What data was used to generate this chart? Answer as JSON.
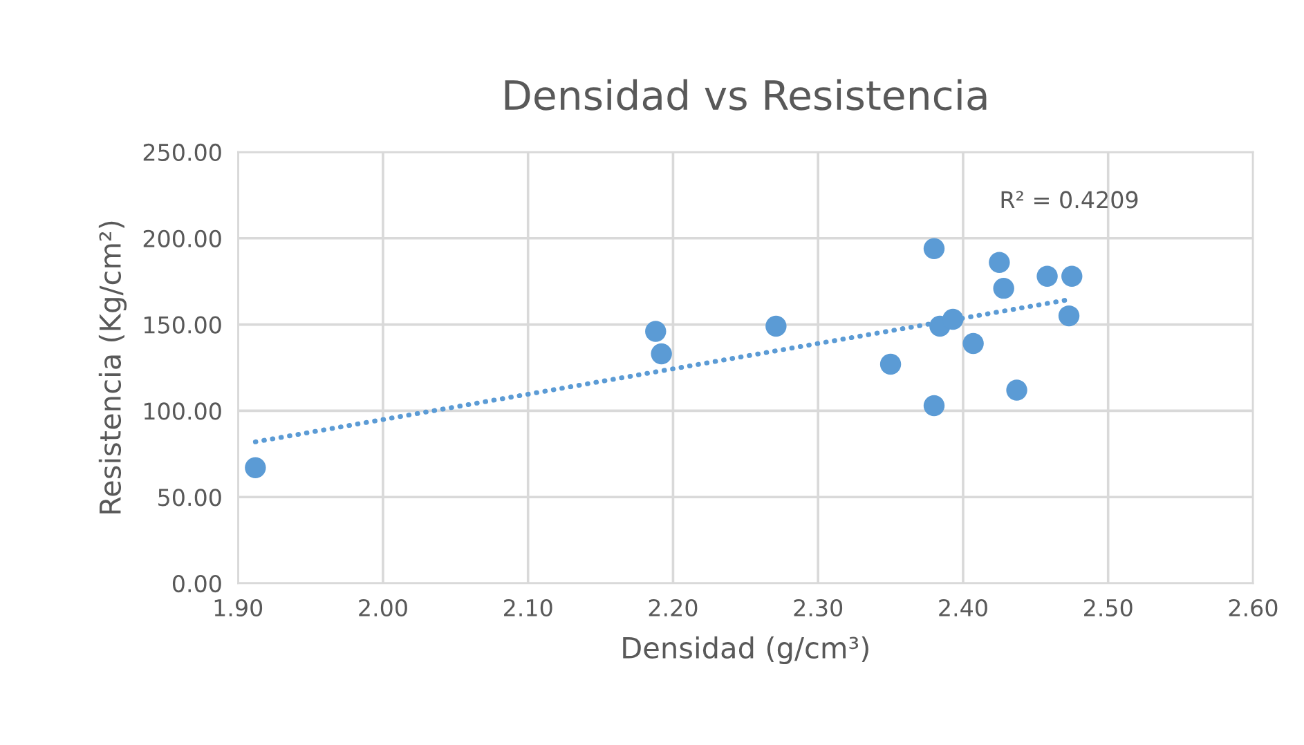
{
  "chart_data": {
    "type": "scatter",
    "title": "Densidad vs Resistencia",
    "xlabel": "Densidad (g/cm³)",
    "ylabel": "Resistencia (Kg/cm²)",
    "annotations": [
      "R² = 0.4209"
    ],
    "series": [
      {
        "color": "#5b9bd5",
        "marker": "circle",
        "x": [
          1.912,
          2.188,
          2.192,
          2.271,
          2.35,
          2.38,
          2.38,
          2.384,
          2.393,
          2.407,
          2.425,
          2.428,
          2.437,
          2.458,
          2.475,
          2.473
        ],
        "values": [
          67,
          146,
          133,
          149,
          127,
          194,
          103,
          149,
          153,
          139,
          186,
          171,
          112,
          178,
          178,
          155
        ]
      },
      {
        "type": "line",
        "color": "#5b9bd5",
        "line_style": "dotted",
        "marker": "none",
        "x": [
          1.912,
          2.47
        ],
        "values": [
          82,
          164
        ]
      }
    ],
    "xlim": [
      1.9,
      2.6
    ],
    "xticks": [
      {
        "value": 1.9,
        "label": "1.90"
      },
      {
        "value": 2.0,
        "label": "2.00"
      },
      {
        "value": 2.1,
        "label": "2.10"
      },
      {
        "value": 2.2,
        "label": "2.20"
      },
      {
        "value": 2.3,
        "label": "2.30"
      },
      {
        "value": 2.4,
        "label": "2.40"
      },
      {
        "value": 2.5,
        "label": "2.50"
      },
      {
        "value": 2.6,
        "label": "2.60"
      }
    ],
    "ylim": [
      0,
      250
    ],
    "yticks": [
      {
        "value": 0,
        "label": "0.00"
      },
      {
        "value": 50,
        "label": "50.00"
      },
      {
        "value": 100,
        "label": "100.00"
      },
      {
        "value": 150,
        "label": "150.00"
      },
      {
        "value": 200,
        "label": "200.00"
      },
      {
        "value": 250,
        "label": "250.00"
      }
    ],
    "grid": true,
    "legend": false
  }
}
